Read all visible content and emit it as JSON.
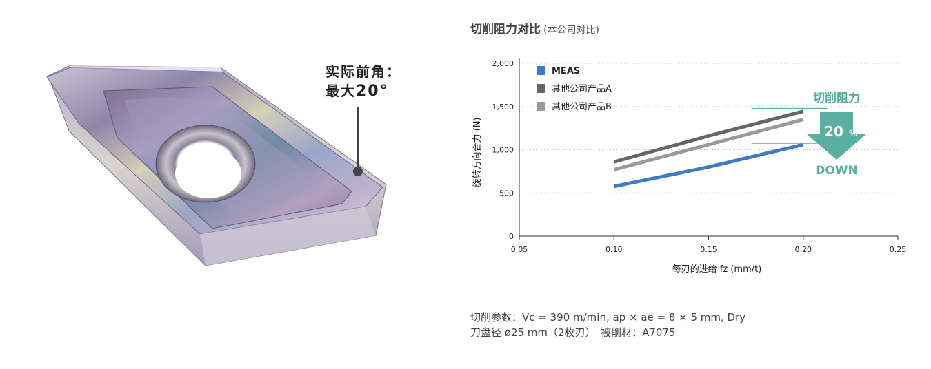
{
  "callout": {
    "line1": "实际前角：",
    "line2_prefix": "最大",
    "line2_value": "20°"
  },
  "chart_title": "切削阻力对比",
  "chart_subtitle": "(本公司对比)",
  "chart_data": {
    "type": "line",
    "title": "切削阻力对比",
    "subtitle": "(本公司对比)",
    "xlabel": "每刃的进给 fz (mm/t)",
    "ylabel": "旋转方向合力 (N)",
    "xlim": [
      0.05,
      0.25
    ],
    "ylim": [
      0,
      2000
    ],
    "x_ticks": [
      "0.05",
      "0.10",
      "0.15",
      "0.20",
      "0.25"
    ],
    "y_ticks": [
      "0",
      "500",
      "1,000",
      "1,500",
      "2,000"
    ],
    "grid": "horizontal dotted",
    "legend_position": "top-left",
    "series": [
      {
        "name": "MEAS",
        "color": "#3d7cc4",
        "x": [
          0.1,
          0.15,
          0.2
        ],
        "y": [
          575,
          800,
          1060
        ]
      },
      {
        "name": "其他公司产品A",
        "color": "#666666",
        "x": [
          0.1,
          0.15,
          0.2
        ],
        "y": [
          860,
          1160,
          1445
        ]
      },
      {
        "name": "其他公司产品B",
        "color": "#9a9a9a",
        "x": [
          0.1,
          0.15,
          0.2
        ],
        "y": [
          770,
          1060,
          1350
        ]
      }
    ],
    "annotation": {
      "title": "切削阻力",
      "value": "20",
      "unit": "%",
      "label": "DOWN",
      "color": "#5aafa0"
    }
  },
  "footnote": {
    "line1": "切削参数：Vc = 390 m/min, ap × ae = 8 × 5 mm, Dry",
    "line2": "刀盘径 ø25 mm（2枚刃）　被削材：A7075"
  },
  "icons": {
    "insert": "milling-insert-image",
    "arrow": "down-arrow-icon"
  }
}
